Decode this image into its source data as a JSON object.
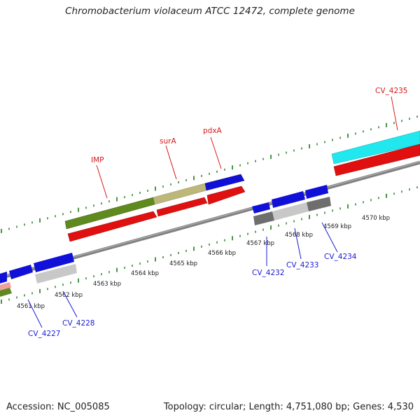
{
  "title": "Chromobacterium violaceum ATCC 12472, complete genome",
  "footer": {
    "accession": "Accession: NC_005085",
    "summary": "Topology: circular; Length: 4,751,080 bp; Genes: 4,530"
  },
  "colors": {
    "backbone": "#808080",
    "tick": "#1a7a1a",
    "forward_label": "#d61a1a",
    "reverse_label": "#1a1ad6",
    "gene_blue": "#1010d8",
    "gene_red": "#e01010",
    "gene_olive": "#5e8a1e",
    "gene_khaki": "#bdb87a",
    "gene_cyan": "#20e8ee",
    "gene_grey": "#6e6e6e",
    "gene_silver": "#c8c8c8",
    "gene_pink": "#f0a0a0"
  },
  "scale_labels": [
    {
      "text": "4561 kbp"
    },
    {
      "text": "4562 kbp"
    },
    {
      "text": "4563 kbp"
    },
    {
      "text": "4564 kbp"
    },
    {
      "text": "4565 kbp"
    },
    {
      "text": "4566 kbp"
    },
    {
      "text": "4567 kbp"
    },
    {
      "text": "4568 kbp"
    },
    {
      "text": "4569 kbp"
    },
    {
      "text": "4570 kbp"
    }
  ],
  "forward_gene_labels": [
    {
      "text": "IMP"
    },
    {
      "text": "surA"
    },
    {
      "text": "pdxA"
    },
    {
      "text": "CV_4235"
    }
  ],
  "reverse_gene_labels": [
    {
      "text": "CV_4227"
    },
    {
      "text": "CV_4228"
    },
    {
      "text": "CV_4232"
    },
    {
      "text": "CV_4233"
    },
    {
      "text": "CV_4234"
    }
  ]
}
